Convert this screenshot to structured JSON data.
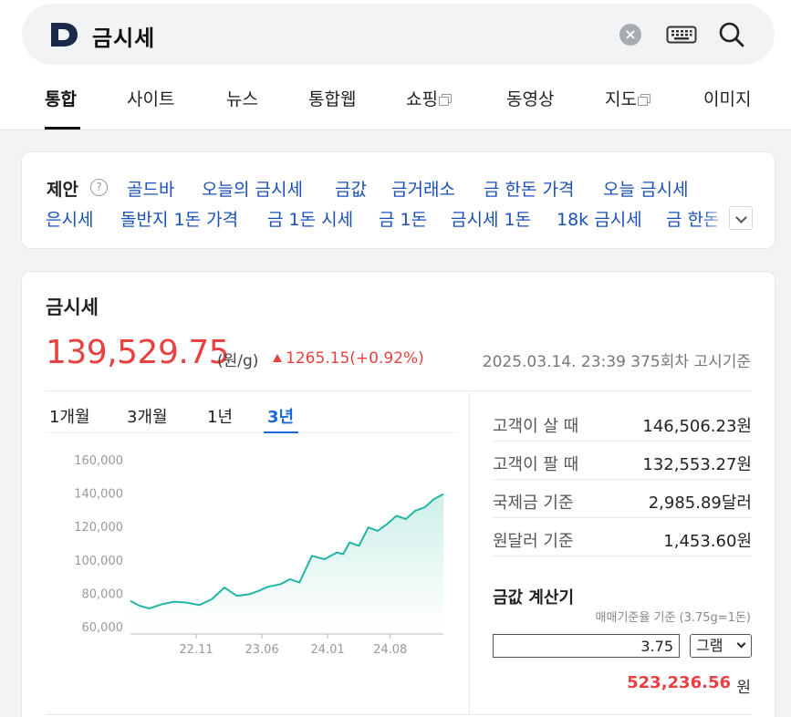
{
  "search": {
    "logo_letter": "D",
    "query": "금시세",
    "clear_symbol": "×"
  },
  "tabs": [
    {
      "label": "통합",
      "active": true
    },
    {
      "label": "사이트"
    },
    {
      "label": "뉴스"
    },
    {
      "label": "통합웹"
    },
    {
      "label": "쇼핑",
      "external": true
    },
    {
      "label": "동영상"
    },
    {
      "label": "지도",
      "external": true
    },
    {
      "label": "이미지"
    }
  ],
  "suggestions": {
    "label": "제안",
    "help": "?",
    "row1": [
      "골드바",
      "오늘의 금시세",
      "금값",
      "금거래소",
      "금 한돈 가격",
      "오늘 금시세"
    ],
    "row2": [
      "은시세",
      "돌반지 1돈 가격",
      "금 1돈 시세",
      "금 1돈",
      "금시세 1돈",
      "18k 금시세",
      "금 한돈"
    ]
  },
  "gold": {
    "title": "금시세",
    "price": "139,529.75",
    "unit": "(원/g)",
    "change": "1265.15(+0.92%)",
    "timestamp": "2025.03.14. 23:39 375회차 고시기준",
    "periods": [
      "1개월",
      "3개월",
      "1년",
      "3년"
    ],
    "active_period": "3년",
    "info": [
      {
        "label": "고객이 살 때",
        "value": "146,506.23원"
      },
      {
        "label": "고객이 팔 때",
        "value": "132,553.27원"
      },
      {
        "label": "국제금 기준",
        "value": "2,985.89달러"
      },
      {
        "label": "원달러 기준",
        "value": "1,453.60원"
      }
    ],
    "calculator": {
      "title": "금값 계산기",
      "note": "매매기준율 기준 (3.75g=1돈)",
      "input_value": "3.75",
      "unit_select": "그램",
      "result": "523,236.56",
      "result_unit": "원"
    }
  },
  "chart_data": {
    "type": "area",
    "color": "#22b5a4",
    "fill_color": "#cdefe9",
    "y_ticks": [
      "160,000",
      "140,000",
      "120,000",
      "100,000",
      "80,000",
      "60,000"
    ],
    "ylim": [
      60000,
      160000
    ],
    "x_ticks": [
      "22.11",
      "23.06",
      "24.01",
      "24.08"
    ],
    "x": [
      0,
      0.03,
      0.06,
      0.1,
      0.14,
      0.18,
      0.22,
      0.26,
      0.3,
      0.34,
      0.38,
      0.41,
      0.44,
      0.48,
      0.51,
      0.54,
      0.58,
      0.62,
      0.66,
      0.68,
      0.7,
      0.73,
      0.76,
      0.79,
      0.82,
      0.85,
      0.88,
      0.91,
      0.94,
      0.97,
      1.0
    ],
    "values": [
      76000,
      73000,
      71500,
      74000,
      75500,
      75000,
      73500,
      77000,
      84000,
      79000,
      80000,
      82000,
      84500,
      86000,
      89000,
      87000,
      103000,
      101000,
      105000,
      104000,
      111000,
      109000,
      120000,
      118000,
      122000,
      127000,
      125000,
      130000,
      132000,
      137000,
      140000
    ]
  }
}
